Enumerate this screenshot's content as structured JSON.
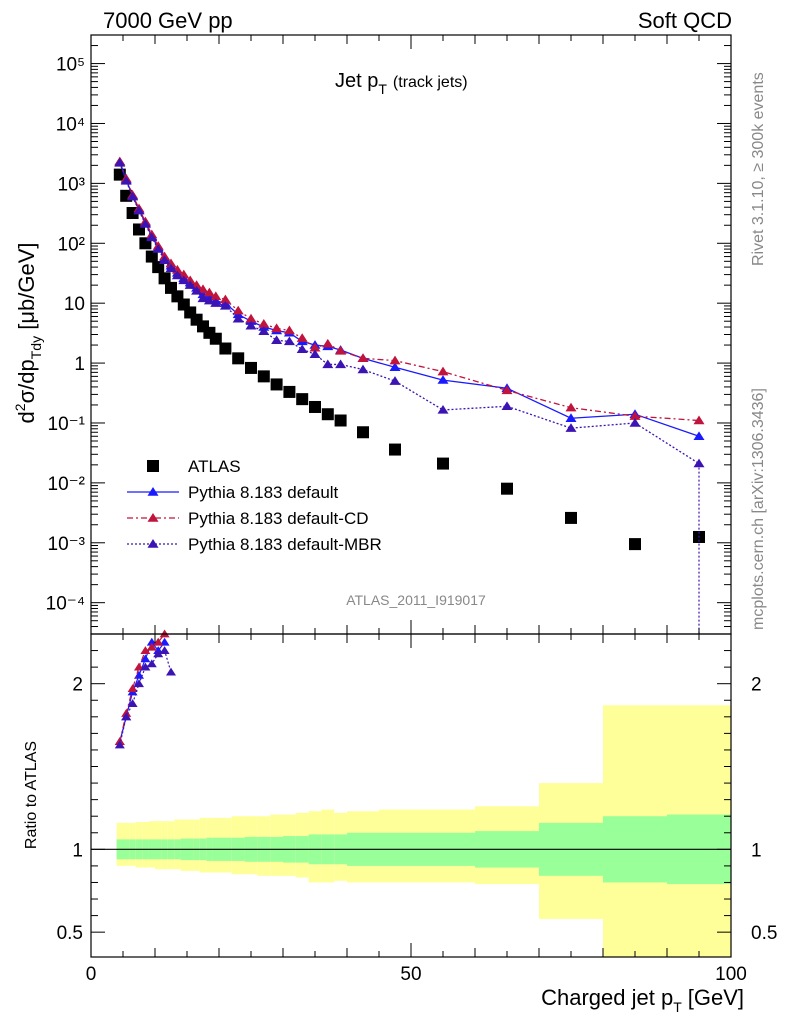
{
  "header": {
    "left": "7000 GeV pp",
    "right": "Soft QCD"
  },
  "side_labels": {
    "rivet": "Rivet 3.1.10, ≥ 300k events",
    "mcplots": "mcplots.cern.ch [arXiv:1306.3436]"
  },
  "chart_data": [
    {
      "panel": "main",
      "type": "scatter",
      "title_main": "Jet p",
      "title_sub": "T",
      "title_extra": "(track jets)",
      "ylabel": "d²σ/dp_Tdy [μb/GeV]",
      "yscale": "log",
      "ylim": [
        3e-05,
        300000
      ],
      "xlim": [
        0,
        100
      ],
      "watermark": "ATLAS_2011_I919017",
      "y_ticks": [
        {
          "value": 100000,
          "label": "10⁵"
        },
        {
          "value": 10000,
          "label": "10⁴"
        },
        {
          "value": 1000,
          "label": "10³"
        },
        {
          "value": 100,
          "label": "10²"
        },
        {
          "value": 10,
          "label": "10"
        },
        {
          "value": 1,
          "label": "1"
        },
        {
          "value": 0.1,
          "label": "10⁻¹"
        },
        {
          "value": 0.01,
          "label": "10⁻²"
        },
        {
          "value": 0.001,
          "label": "10⁻³"
        },
        {
          "value": 0.0001,
          "label": "10⁻⁴"
        }
      ],
      "series": [
        {
          "name": "ATLAS",
          "style": "data",
          "color": "#000000",
          "x": [
            4.5,
            5.5,
            6.5,
            7.5,
            8.5,
            9.5,
            10.5,
            11.5,
            12.5,
            13.5,
            14.5,
            15.5,
            16.5,
            17.5,
            18.5,
            19.5,
            21,
            23,
            25,
            27,
            29,
            31,
            33,
            35,
            37,
            39,
            42.5,
            47.5,
            55,
            65,
            75,
            85,
            95
          ],
          "y": [
            1400,
            620,
            320,
            170,
            100,
            60,
            40,
            26,
            18,
            13,
            9.5,
            7,
            5.3,
            4.1,
            3.2,
            2.55,
            1.75,
            1.2,
            0.83,
            0.6,
            0.44,
            0.33,
            0.25,
            0.185,
            0.14,
            0.11,
            0.07,
            0.036,
            0.021,
            0.008,
            0.0026,
            0.00095,
            0.00125
          ]
        },
        {
          "name": "Pythia 8.183 default",
          "style": "solid",
          "color": "#1a1aff",
          "x": [
            4.5,
            5.5,
            6.5,
            7.5,
            8.5,
            9.5,
            10.5,
            11.5,
            12.5,
            13.5,
            14.5,
            15.5,
            16.5,
            17.5,
            18.5,
            19.5,
            21,
            23,
            25,
            27,
            29,
            31,
            33,
            35,
            37,
            39,
            42.5,
            47.5,
            55,
            65,
            75,
            85,
            95
          ],
          "y": [
            2300,
            1150,
            620,
            360,
            220,
            130,
            85,
            57,
            42,
            32,
            26,
            22,
            18,
            14,
            13,
            11,
            10,
            6.5,
            5,
            4,
            3.5,
            3.2,
            2.3,
            2.0,
            1.9,
            1.65,
            1.2,
            0.85,
            0.52,
            0.38,
            0.12,
            0.14,
            0.06
          ]
        },
        {
          "name": "Pythia 8.183 default-CD",
          "style": "dashed",
          "color": "#c0143c",
          "x": [
            4.5,
            5.5,
            6.5,
            7.5,
            8.5,
            9.5,
            10.5,
            11.5,
            12.5,
            13.5,
            14.5,
            15.5,
            16.5,
            17.5,
            18.5,
            19.5,
            21,
            23,
            25,
            27,
            29,
            31,
            33,
            35,
            37,
            39,
            42.5,
            47.5,
            55,
            65,
            75,
            85,
            95
          ],
          "y": [
            2300,
            1200,
            640,
            380,
            230,
            140,
            90,
            60,
            46,
            36,
            30,
            24,
            20,
            17,
            15,
            13,
            11.5,
            7.5,
            5.5,
            4.5,
            3.8,
            3.5,
            2.6,
            1.8,
            2.1,
            1.6,
            1.2,
            1.1,
            0.72,
            0.35,
            0.18,
            0.13,
            0.11
          ]
        },
        {
          "name": "Pythia 8.183 default-MBR",
          "style": "dotted",
          "color": "#3c14b4",
          "x": [
            4.5,
            5.5,
            6.5,
            7.5,
            8.5,
            9.5,
            10.5,
            11.5,
            12.5,
            13.5,
            14.5,
            15.5,
            16.5,
            17.5,
            18.5,
            19.5,
            21,
            23,
            25,
            27,
            29,
            31,
            33,
            35,
            37,
            39,
            42.5,
            47.5,
            55,
            65,
            75,
            85,
            95
          ],
          "y": [
            2200,
            1100,
            600,
            350,
            210,
            125,
            80,
            52,
            38,
            29,
            24,
            20,
            16,
            12,
            11,
            10,
            9,
            5.5,
            4.2,
            3.4,
            2.4,
            2.3,
            1.7,
            1.4,
            0.95,
            0.95,
            0.78,
            0.5,
            0.165,
            0.19,
            0.082,
            0.1,
            0.021
          ]
        }
      ]
    },
    {
      "panel": "ratio",
      "type": "scatter",
      "ylabel": "Ratio to ATLAS",
      "xlabel_main": "Charged jet p",
      "xlabel_sub": "T",
      "xlabel_unit": "[GeV]",
      "ylim": [
        0.35,
        2.3
      ],
      "xlim": [
        0,
        100
      ],
      "y_ticks": [
        {
          "value": 0.5,
          "label": "0.5"
        },
        {
          "value": 1,
          "label": "1"
        },
        {
          "value": 2,
          "label": "2"
        }
      ],
      "x_ticks": [
        {
          "value": 0,
          "label": "0"
        },
        {
          "value": 50,
          "label": "50"
        },
        {
          "value": 100,
          "label": "100"
        }
      ],
      "bands": {
        "edges": [
          4,
          5,
          6,
          7,
          8,
          9,
          10,
          11,
          12,
          13,
          14,
          15,
          16,
          17,
          18,
          19,
          20,
          22,
          24,
          26,
          28,
          30,
          32,
          34,
          36,
          38,
          40,
          45,
          50,
          60,
          70,
          80,
          90,
          100
        ],
        "stat_half": [
          0.06,
          0.06,
          0.06,
          0.06,
          0.06,
          0.06,
          0.06,
          0.06,
          0.06,
          0.06,
          0.065,
          0.065,
          0.065,
          0.065,
          0.07,
          0.07,
          0.07,
          0.07,
          0.075,
          0.075,
          0.075,
          0.08,
          0.08,
          0.09,
          0.09,
          0.09,
          0.1,
          0.1,
          0.1,
          0.11,
          0.16,
          0.2,
          0.21,
          0.2
        ],
        "syst_up": [
          1.16,
          1.16,
          1.16,
          1.165,
          1.165,
          1.17,
          1.17,
          1.17,
          1.17,
          1.18,
          1.18,
          1.18,
          1.18,
          1.19,
          1.19,
          1.19,
          1.19,
          1.2,
          1.2,
          1.2,
          1.21,
          1.21,
          1.22,
          1.23,
          1.24,
          1.22,
          1.23,
          1.24,
          1.24,
          1.26,
          1.4,
          1.87,
          1.87,
          1.86
        ],
        "syst_down": [
          0.9,
          0.9,
          0.9,
          0.89,
          0.89,
          0.89,
          0.88,
          0.88,
          0.88,
          0.88,
          0.87,
          0.87,
          0.87,
          0.86,
          0.86,
          0.86,
          0.86,
          0.85,
          0.85,
          0.84,
          0.84,
          0.84,
          0.83,
          0.8,
          0.8,
          0.81,
          0.8,
          0.8,
          0.8,
          0.79,
          0.58,
          0.35,
          0.35,
          0.35
        ]
      },
      "series": [
        {
          "name": "Pythia 8.183 default",
          "color": "#1a1aff",
          "x": [
            4.5,
            5.5,
            6.5,
            7.5,
            8.5,
            9.5,
            10.5,
            11.5
          ],
          "y": [
            1.65,
            1.8,
            1.95,
            2.05,
            2.15,
            2.25,
            2.2,
            2.25
          ]
        },
        {
          "name": "Pythia 8.183 default-CD",
          "color": "#c0143c",
          "x": [
            4.5,
            5.5,
            6.5,
            7.5,
            8.5,
            9.5,
            10.5,
            11.5
          ],
          "y": [
            1.65,
            1.82,
            1.97,
            2.1,
            2.2,
            2.22,
            2.25,
            2.3
          ]
        },
        {
          "name": "Pythia 8.183 default-MBR",
          "color": "#3c14b4",
          "x": [
            4.5,
            5.5,
            6.5,
            7.5,
            8.5,
            9.5,
            10.5,
            11.5,
            12.5
          ],
          "y": [
            1.63,
            1.8,
            1.88,
            2.0,
            2.1,
            2.12,
            2.18,
            2.2,
            2.07
          ]
        }
      ]
    }
  ]
}
